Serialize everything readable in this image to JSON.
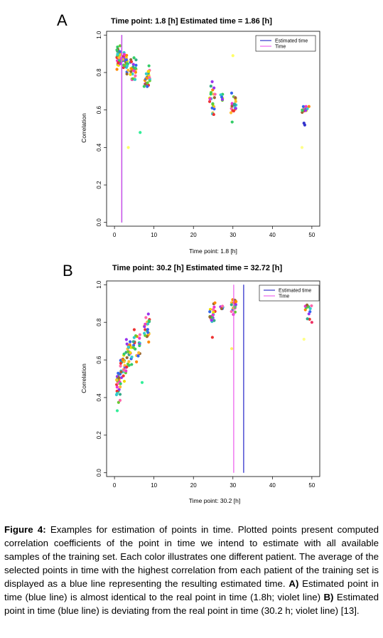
{
  "panels": [
    {
      "letter": "A",
      "chart_data": {
        "type": "scatter",
        "title": "Time point: 1.8 [h] Estimated time = 1.86 [h]",
        "xlabel": "Time point: 1.8 [h]",
        "ylabel": "Correlation",
        "xlim": [
          -2,
          52
        ],
        "ylim": [
          -0.02,
          1.02
        ],
        "xticks": [
          0,
          10,
          20,
          30,
          40,
          50
        ],
        "yticks": [
          0.0,
          0.2,
          0.4,
          0.6,
          0.8,
          1.0
        ],
        "grid": false,
        "legend": {
          "position": "top-right",
          "entries": [
            {
              "label": "Estimated time",
              "color": "#3333cc"
            },
            {
              "label": "Time",
              "color": "#ee66ee"
            }
          ]
        },
        "vlines": [
          {
            "name": "Estimated time",
            "x": 1.86,
            "y0": 0.0,
            "y1": 1.0,
            "color": "#3333cc"
          },
          {
            "name": "Time",
            "x": 1.8,
            "y0": 0.0,
            "y1": 1.0,
            "color": "#ee66ee"
          }
        ],
        "clusters": [
          {
            "x": [
              0.5,
              1.8
            ],
            "y_mean": 0.88,
            "spread": 0.04,
            "n": 45
          },
          {
            "x": [
              2.0,
              3.5
            ],
            "y_mean": 0.85,
            "spread": 0.04,
            "n": 30
          },
          {
            "x": [
              4.0,
              5.5
            ],
            "y_mean": 0.82,
            "spread": 0.04,
            "n": 26
          },
          {
            "x": [
              7.5,
              9.0
            ],
            "y_mean": 0.77,
            "spread": 0.05,
            "n": 24
          },
          {
            "x": [
              24.0,
              25.5
            ],
            "y_mean": 0.65,
            "spread": 0.06,
            "n": 24
          },
          {
            "x": [
              26.8,
              27.4
            ],
            "y_mean": 0.66,
            "spread": 0.03,
            "n": 6
          },
          {
            "x": [
              29.5,
              30.8
            ],
            "y_mean": 0.62,
            "spread": 0.05,
            "n": 22
          },
          {
            "x": [
              47.5,
              49.5
            ],
            "y_mean": 0.61,
            "spread": 0.03,
            "n": 14
          }
        ],
        "outliers": [
          {
            "x": 6.5,
            "y": 0.48,
            "color": "#33ee99"
          },
          {
            "x": 3.5,
            "y": 0.4,
            "color": "#ffff66"
          },
          {
            "x": 30.0,
            "y": 0.89,
            "color": "#ffff66"
          },
          {
            "x": 48.0,
            "y": 0.53,
            "color": "#3333cc"
          },
          {
            "x": 48.2,
            "y": 0.52,
            "color": "#3333cc"
          },
          {
            "x": 47.5,
            "y": 0.4,
            "color": "#ffff88"
          }
        ]
      }
    },
    {
      "letter": "B",
      "chart_data": {
        "type": "scatter",
        "title": "Time point: 30.2 [h] Estimated time = 32.72 [h]",
        "xlabel": "Time point: 30.2 [h]",
        "ylabel": "Correlation",
        "xlim": [
          -2,
          52
        ],
        "ylim": [
          -0.02,
          1.02
        ],
        "xticks": [
          0,
          10,
          20,
          30,
          40,
          50
        ],
        "yticks": [
          0.0,
          0.2,
          0.4,
          0.6,
          0.8,
          1.0
        ],
        "grid": false,
        "legend": {
          "position": "top-right",
          "entries": [
            {
              "label": "Estimated time",
              "color": "#3333cc"
            },
            {
              "label": "Time",
              "color": "#ee66ee"
            }
          ]
        },
        "vlines": [
          {
            "name": "Estimated time",
            "x": 32.72,
            "y0": 0.0,
            "y1": 1.0,
            "color": "#3333cc"
          },
          {
            "name": "Time",
            "x": 30.2,
            "y0": 0.0,
            "y1": 1.0,
            "color": "#ee66ee"
          }
        ],
        "clusters": [
          {
            "x": [
              0.5,
              1.5
            ],
            "y_mean": 0.48,
            "spread": 0.06,
            "n": 26
          },
          {
            "x": [
              1.5,
              3.0
            ],
            "y_mean": 0.56,
            "spread": 0.06,
            "n": 26
          },
          {
            "x": [
              3.0,
              4.5
            ],
            "y_mean": 0.64,
            "spread": 0.06,
            "n": 26
          },
          {
            "x": [
              4.5,
              6.5
            ],
            "y_mean": 0.68,
            "spread": 0.05,
            "n": 24
          },
          {
            "x": [
              7.5,
              9.0
            ],
            "y_mean": 0.78,
            "spread": 0.05,
            "n": 22
          },
          {
            "x": [
              24.0,
              25.5
            ],
            "y_mean": 0.85,
            "spread": 0.04,
            "n": 22
          },
          {
            "x": [
              26.8,
              27.5
            ],
            "y_mean": 0.88,
            "spread": 0.01,
            "n": 6
          },
          {
            "x": [
              29.5,
              30.8
            ],
            "y_mean": 0.88,
            "spread": 0.03,
            "n": 22
          },
          {
            "x": [
              48.0,
              50.0
            ],
            "y_mean": 0.88,
            "spread": 0.04,
            "n": 14
          }
        ],
        "outliers": [
          {
            "x": 0.7,
            "y": 0.33,
            "color": "#33ee99"
          },
          {
            "x": 7.0,
            "y": 0.48,
            "color": "#33ee99"
          },
          {
            "x": 24.8,
            "y": 0.72,
            "color": "#ee3333"
          },
          {
            "x": 29.7,
            "y": 0.66,
            "color": "#ffee66"
          },
          {
            "x": 48.0,
            "y": 0.71,
            "color": "#ffff88"
          },
          {
            "x": 50.0,
            "y": 0.8,
            "color": "#ee3366"
          }
        ]
      }
    }
  ],
  "palette": [
    "#ee3333",
    "#ff8800",
    "#eedd00",
    "#66cc33",
    "#33cc66",
    "#33cccc",
    "#3366ee",
    "#9933ee",
    "#ee33cc",
    "#ff66aa",
    "#996633",
    "#33aa88",
    "#ffbb33"
  ],
  "caption": {
    "label": "Figure 4:",
    "text1": " Examples for estimation of points in time. Plotted points present computed correlation coefficients of the point in time we intend to estimate with all available samples of the training set. Each color illustrates one different patient. The average of the selected points in time with the highest correlation from each patient of the training set is displayed as a blue line representing the resulting estimated time. ",
    "a_label": "A)",
    "text2": " Estimated point in time (blue line) is almost identical to the real point in time (1.8h; violet line) ",
    "b_label": "B)",
    "text3": " Estimated point in time (blue line) is deviating from the real point in time (30.2 h; violet line) [13]."
  }
}
